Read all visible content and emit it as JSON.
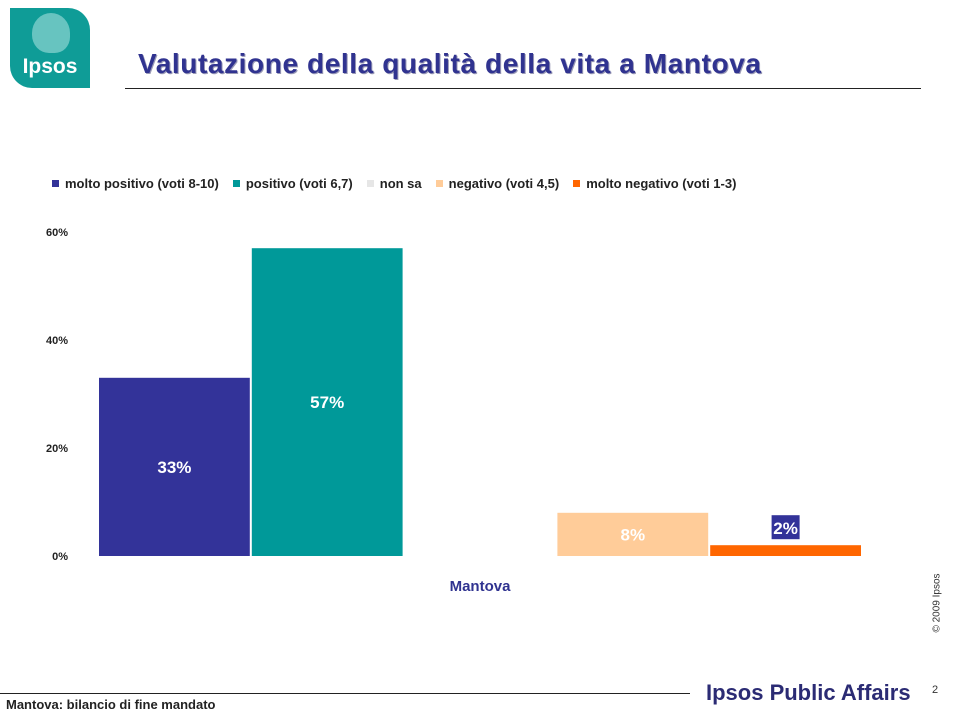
{
  "logo": {
    "text": "Ipsos"
  },
  "title": "Valutazione della qualità della vita a Mantova",
  "copyright": "© 2009 Ipsos",
  "footer": {
    "text": "Mantova: bilancio di fine mandato",
    "brand": "Ipsos Public Affairs",
    "page": "2"
  },
  "chart_data": {
    "type": "bar",
    "categories": [
      "Mantova"
    ],
    "series": [
      {
        "name": "molto positivo (voti 8-10)",
        "values": [
          33
        ],
        "label": "33%",
        "color": "#333399"
      },
      {
        "name": "positivo (voti 6,7)",
        "values": [
          57
        ],
        "label": "57%",
        "color": "#009999"
      },
      {
        "name": "non sa",
        "values": [
          0
        ],
        "label": "",
        "color": "#e6e6e6"
      },
      {
        "name": "negativo (voti 4,5)",
        "values": [
          8
        ],
        "label": "8%",
        "color": "#ffcc99"
      },
      {
        "name": "molto negativo (voti 1-3)",
        "values": [
          2
        ],
        "label": "2%",
        "color": "#ff6600"
      }
    ],
    "yticks": [
      "0%",
      "20%",
      "40%",
      "60%"
    ],
    "ylim": [
      0,
      60
    ],
    "xlabel": "",
    "ylabel": "",
    "legend_position": "top",
    "grid": false
  }
}
